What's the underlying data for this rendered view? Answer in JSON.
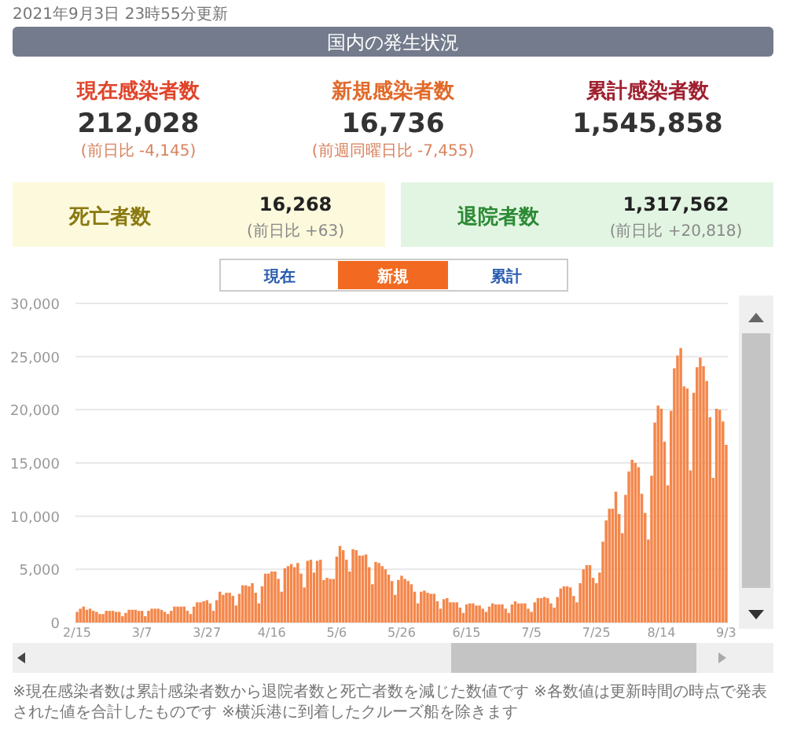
{
  "chart_data": [
    {
      "type": "other",
      "title": "国内の発生状況",
      "subtitle": "2021年9月3日 23時55分更新",
      "annotations": [
        "現在感染者数",
        "212,028",
        "(前日比 -4,145)",
        "新規感染者数",
        "16,736",
        "(前週同曜日比 -7,455)",
        "累計感染者数",
        "1,545,858",
        "死亡者数",
        "16,268",
        "(前日比 +63)",
        "退院者数",
        "1,317,562",
        "(前日比 +20,818)"
      ]
    },
    {
      "type": "bar",
      "color": "#f4874b",
      "grid": "y",
      "ylim": [
        0,
        30000
      ],
      "yticks": [
        0,
        {
          "value": 5000,
          "label": "5,000"
        },
        {
          "value": 10000,
          "label": "10,000"
        },
        {
          "value": 15000,
          "label": "15,000"
        },
        {
          "value": 20000,
          "label": "20,000"
        },
        {
          "value": 25000,
          "label": "25,000"
        },
        {
          "value": 30000,
          "label": "30,000"
        }
      ],
      "categories": [
        "2/15",
        null,
        null,
        null,
        null,
        null,
        null,
        null,
        null,
        null,
        null,
        null,
        null,
        null,
        null,
        null,
        null,
        null,
        null,
        null,
        "3/7",
        null,
        null,
        null,
        null,
        null,
        null,
        null,
        null,
        null,
        null,
        null,
        null,
        null,
        null,
        null,
        null,
        null,
        null,
        null,
        "3/27",
        null,
        null,
        null,
        null,
        null,
        null,
        null,
        null,
        null,
        null,
        null,
        null,
        null,
        null,
        null,
        null,
        null,
        null,
        null,
        "4/16",
        null,
        null,
        null,
        null,
        null,
        null,
        null,
        null,
        null,
        null,
        null,
        null,
        null,
        null,
        null,
        null,
        null,
        null,
        null,
        "5/6",
        null,
        null,
        null,
        null,
        null,
        null,
        null,
        null,
        null,
        null,
        null,
        null,
        null,
        null,
        null,
        null,
        null,
        null,
        null,
        "5/26",
        null,
        null,
        null,
        null,
        null,
        null,
        null,
        null,
        null,
        null,
        null,
        null,
        null,
        null,
        null,
        null,
        null,
        null,
        null,
        "6/15",
        null,
        null,
        null,
        null,
        null,
        null,
        null,
        null,
        null,
        null,
        null,
        null,
        null,
        null,
        null,
        null,
        null,
        null,
        null,
        "7/5",
        null,
        null,
        null,
        null,
        null,
        null,
        null,
        null,
        null,
        null,
        null,
        null,
        null,
        null,
        null,
        null,
        null,
        null,
        null,
        "7/25",
        null,
        null,
        null,
        null,
        null,
        null,
        null,
        null,
        null,
        null,
        null,
        null,
        null,
        null,
        null,
        null,
        null,
        null,
        null,
        "8/14",
        null,
        null,
        null,
        null,
        null,
        null,
        null,
        null,
        null,
        null,
        null,
        null,
        null,
        null,
        null,
        null,
        null,
        null,
        null,
        "9/3"
      ],
      "values": [
        1000,
        1300,
        1500,
        1200,
        1300,
        1100,
        1000,
        800,
        800,
        1100,
        1100,
        1100,
        1000,
        1000,
        600,
        900,
        1200,
        1200,
        1200,
        1100,
        1100,
        600,
        1100,
        1300,
        1300,
        1300,
        1200,
        1000,
        800,
        1100,
        1500,
        1500,
        1500,
        1500,
        1100,
        800,
        1500,
        1900,
        1900,
        2000,
        2100,
        1800,
        1100,
        2100,
        2900,
        2600,
        2800,
        2800,
        2500,
        1600,
        2700,
        3500,
        3500,
        3400,
        3700,
        2800,
        1800,
        3400,
        4600,
        4600,
        4800,
        4800,
        4100,
        2900,
        5100,
        5300,
        5500,
        5200,
        5600,
        4600,
        3300,
        5800,
        5900,
        4700,
        5800,
        5900,
        4000,
        4200,
        4100,
        4100,
        6200,
        7200,
        6800,
        5900,
        4800,
        6900,
        6800,
        6300,
        6300,
        6400,
        5200,
        3600,
        5700,
        5600,
        5300,
        5000,
        4500,
        3900,
        2600,
        4000,
        4400,
        4100,
        3900,
        3600,
        2900,
        1800,
        2900,
        3000,
        2800,
        2700,
        2700,
        2000,
        1300,
        2200,
        2300,
        1900,
        1900,
        1900,
        1400,
        900,
        1700,
        1800,
        1800,
        1600,
        1600,
        1300,
        1000,
        1500,
        1800,
        1700,
        1700,
        1700,
        1300,
        900,
        1700,
        2000,
        1800,
        1800,
        1800,
        1300,
        1000,
        1900,
        2300,
        2300,
        2400,
        2300,
        1800,
        1400,
        2400,
        3200,
        3400,
        3400,
        3300,
        2500,
        1900,
        3700,
        5000,
        5400,
        5400,
        4200,
        3700,
        4700,
        7600,
        9600,
        10700,
        10700,
        12300,
        10200,
        8400,
        12000,
        14200,
        15300,
        15000,
        14600,
        12100,
        10300,
        7800,
        13800,
        18800,
        20400,
        20100,
        17000,
        12900,
        19900,
        23900,
        25100,
        25800,
        22200,
        22000,
        14300,
        21600,
        24000,
        24900,
        24100,
        22700,
        19300,
        13600,
        20100,
        20000,
        18900,
        16700
      ],
      "annotations": [
        "現在",
        "新規",
        "累計",
        "※現在感染者数は累計感染者数から退院者数と死亡者数を減じた数値です ※各数値は更新時間の時点で発表された値を合計したものです ※横浜港に到着したクルーズ船を除きます"
      ]
    }
  ]
}
